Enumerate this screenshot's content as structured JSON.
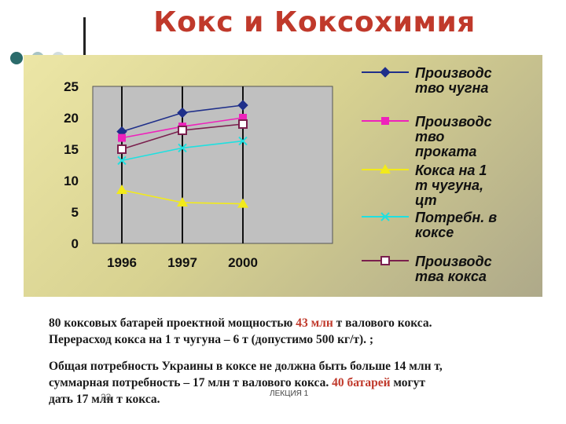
{
  "slide": {
    "title": "Кокс и Коксохимия",
    "para1_line1_pre": "80 коксовых батарей проектной мощностью ",
    "para1_line1_red": "43 млн",
    "para1_line1_post": " т валового кокса.",
    "para1_line2": "Перерасход кокса на 1 т чугуна – 6 т (допустимо 500 кг/т). ;",
    "para2_line1": "Общая потребность Украины в коксе не должна быть больше 14 млн т,",
    "para2_line2_pre": "суммарная потребность – 17 млн т валового кокса. ",
    "para2_line2_red": "40 батарей",
    "para2_line2_post": " могут",
    "para2_line3": "дать 17 млн т кокса.",
    "slide_number": "23",
    "footer": "ЛЕКЦИЯ 1"
  },
  "chart_data": {
    "type": "line",
    "categories": [
      "1996",
      "1997",
      "2000"
    ],
    "ylim": [
      0,
      25
    ],
    "yticks": [
      "0",
      "5",
      "10",
      "15",
      "20",
      "25"
    ],
    "grid": "vertical lines at categories",
    "legend_position": "right",
    "series": [
      {
        "name": "Производс тво чугна",
        "values": [
          17.8,
          20.8,
          22.0
        ],
        "color": "#1f2f8a",
        "marker": "diamond"
      },
      {
        "name": "Производс тво проката",
        "values": [
          16.8,
          18.6,
          20.0
        ],
        "color": "#ee22bb",
        "marker": "square"
      },
      {
        "name": "Кокса на 1 т чугуна, цт",
        "values": [
          8.5,
          6.5,
          6.3
        ],
        "color": "#f2ea1a",
        "marker": "triangle"
      },
      {
        "name": "Потребн. в коксе",
        "values": [
          13.2,
          15.2,
          16.3
        ],
        "color": "#1fe0e0",
        "marker": "x"
      },
      {
        "name": "Производс тва кокса",
        "values": [
          15.0,
          18.0,
          19.0
        ],
        "color": "#7a1f4d",
        "marker": "hollow-square"
      }
    ],
    "legend_labels": [
      [
        "Производс",
        "тво чугна"
      ],
      [
        "Производс",
        "тво",
        "проката"
      ],
      [
        "Кокса на 1",
        "т чугуна,",
        "цт"
      ],
      [
        "Потребн. в",
        "коксе"
      ],
      [
        "Производс",
        "тва кокса"
      ]
    ]
  },
  "decor": {
    "dot_colors": [
      "#2b6b6b",
      "#a8c4c4",
      "#d2dede"
    ],
    "title_color": "#c0392b",
    "plot_bg": "#c0c0c0"
  }
}
